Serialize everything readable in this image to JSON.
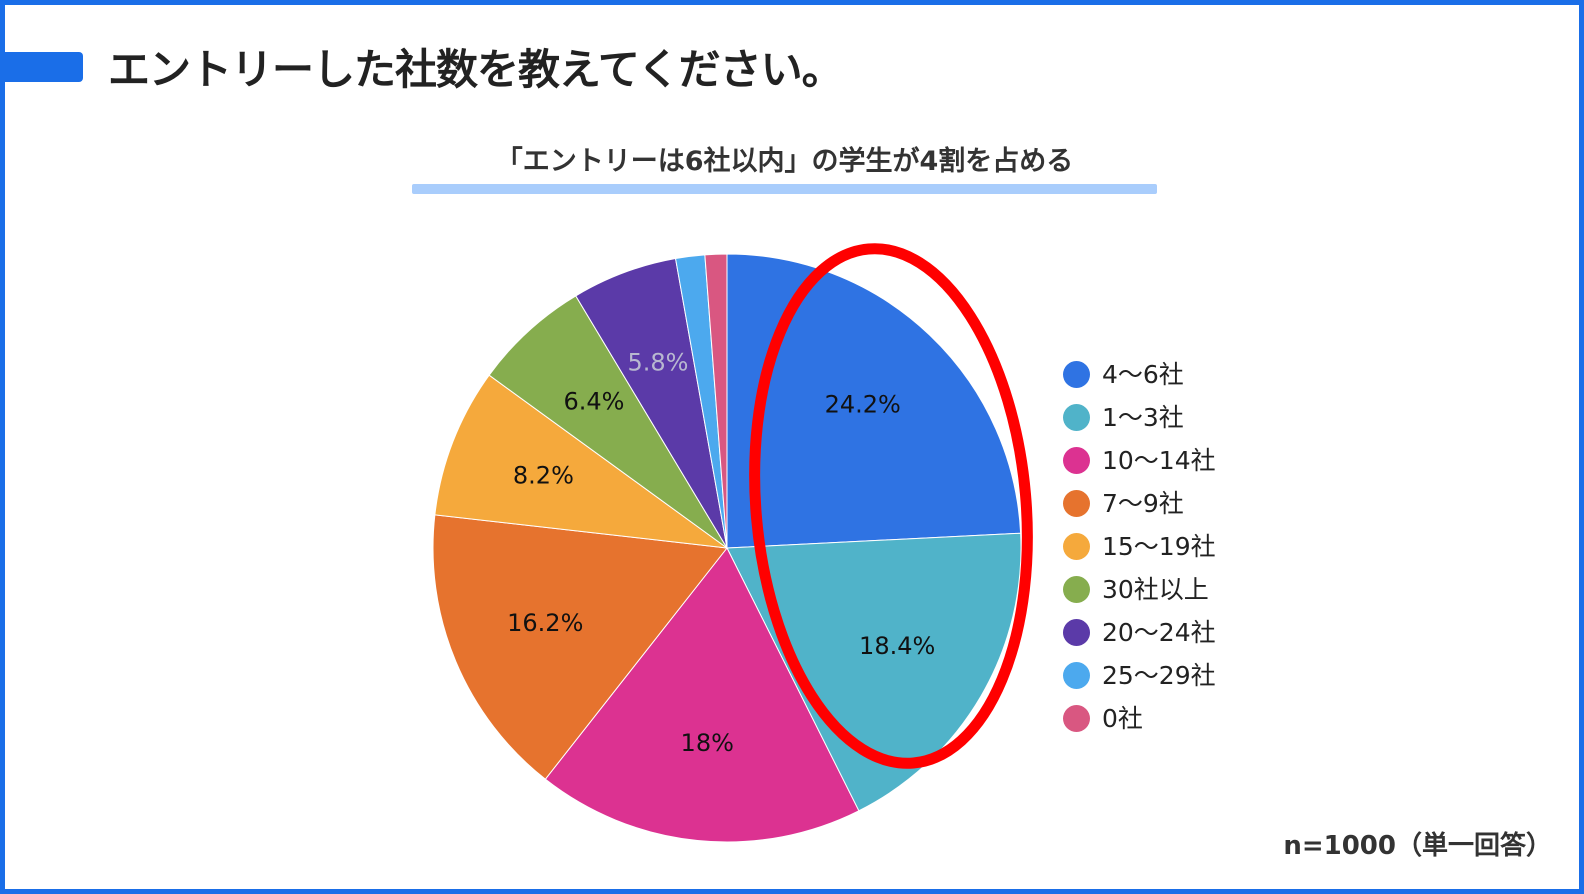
{
  "page": {
    "heading": "エントリーした社数を教えてください。",
    "subtitle": "「エントリーは6社以内」の学生が4割を占める",
    "footnote": "n=1000（単一回答）",
    "frame_color": "#1a6ee8",
    "accent_underline_color": "#a9cdfc",
    "highlight_ellipse_color": "#ff0000"
  },
  "chart_data": {
    "type": "pie",
    "title": "「エントリーは6社以内」の学生が4割を占める",
    "legend_position": "right",
    "slices": [
      {
        "label": "4〜6社",
        "value": 24.2,
        "value_label": "24.2%",
        "color": "#2f73e3",
        "label_color": "#111111"
      },
      {
        "label": "1〜3社",
        "value": 18.4,
        "value_label": "18.4%",
        "color": "#50b3c9",
        "label_color": "#111111"
      },
      {
        "label": "10〜14社",
        "value": 18,
        "value_label": "18%",
        "color": "#dc3291",
        "label_color": "#111111"
      },
      {
        "label": "7〜9社",
        "value": 16.2,
        "value_label": "16.2%",
        "color": "#e6732e",
        "label_color": "#111111"
      },
      {
        "label": "15〜19社",
        "value": 8.2,
        "value_label": "8.2%",
        "color": "#f5a93c",
        "label_color": "#111111"
      },
      {
        "label": "30社以上",
        "value": 6.4,
        "value_label": "6.4%",
        "color": "#86ad4e",
        "label_color": "#111111"
      },
      {
        "label": "20〜24社",
        "value": 5.8,
        "value_label": "5.8%",
        "color": "#5b3aa8",
        "label_color": "#b8b8d0"
      },
      {
        "label": "25〜29社",
        "value": 1.6,
        "value_label": "",
        "color": "#4ca9ee",
        "label_color": "#111111"
      },
      {
        "label": "0社",
        "value": 1.2,
        "value_label": "",
        "color": "#d95781",
        "label_color": "#111111"
      }
    ]
  }
}
